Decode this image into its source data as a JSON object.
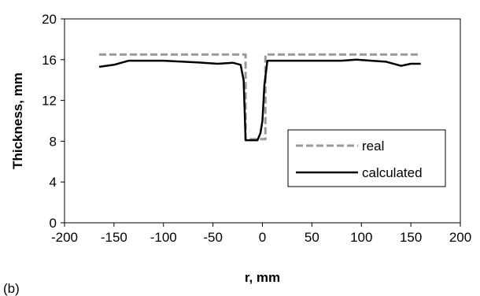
{
  "panel_label": "(b)",
  "chart_data": {
    "type": "line",
    "xlabel": "r, mm",
    "ylabel": "Thickness, mm",
    "xlim": [
      -200,
      200
    ],
    "ylim": [
      0,
      20
    ],
    "xticks": [
      -200,
      -150,
      -100,
      -50,
      0,
      50,
      100,
      150,
      200
    ],
    "yticks": [
      0,
      4,
      8,
      12,
      16,
      20
    ],
    "grid": false,
    "legend_position": "lower-right",
    "series": [
      {
        "name": "real",
        "style": "dashed",
        "color": "#999999",
        "x": [
          -165,
          -17,
          -17,
          3,
          3,
          160
        ],
        "y": [
          16.5,
          16.5,
          8.2,
          8.2,
          16.5,
          16.5
        ]
      },
      {
        "name": "calculated",
        "style": "solid",
        "color": "#000000",
        "x": [
          -165,
          -150,
          -135,
          -120,
          -100,
          -80,
          -60,
          -45,
          -30,
          -22,
          -19,
          -18,
          -17,
          -10,
          -5,
          -2,
          0,
          2,
          5,
          20,
          40,
          60,
          80,
          95,
          110,
          125,
          140,
          150,
          160
        ],
        "y": [
          15.3,
          15.5,
          15.9,
          15.9,
          15.9,
          15.8,
          15.7,
          15.6,
          15.7,
          15.5,
          14.0,
          11.0,
          8.1,
          8.1,
          8.1,
          8.8,
          10.0,
          13.5,
          15.9,
          15.9,
          15.9,
          15.9,
          15.9,
          16.0,
          15.9,
          15.8,
          15.4,
          15.6,
          15.6
        ]
      }
    ]
  }
}
